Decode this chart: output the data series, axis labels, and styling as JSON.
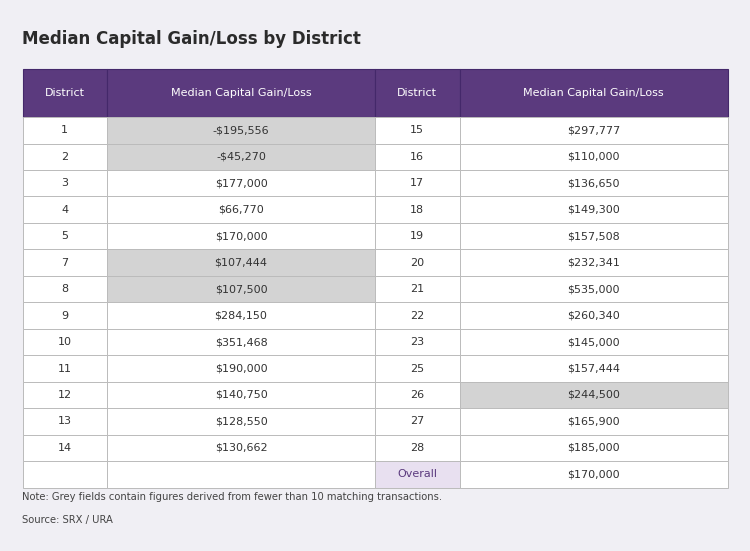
{
  "title": "Median Capital Gain/Loss by District",
  "header_bg": "#5b3a7e",
  "header_fg": "#ffffff",
  "row_bg_white": "#ffffff",
  "row_bg_grey": "#d3d3d3",
  "border_color": "#bbbbbb",
  "overall_district_bg": "#e8e0f0",
  "overall_district_fg": "#5b3a7e",
  "col_headers": [
    "District",
    "Median Capital Gain/Loss",
    "District",
    "Median Capital Gain/Loss"
  ],
  "left_data": [
    {
      "district": "1",
      "value": "-$195,556",
      "grey": true
    },
    {
      "district": "2",
      "value": "-$45,270",
      "grey": true
    },
    {
      "district": "3",
      "value": "$177,000",
      "grey": false
    },
    {
      "district": "4",
      "value": "$66,770",
      "grey": false
    },
    {
      "district": "5",
      "value": "$170,000",
      "grey": false
    },
    {
      "district": "7",
      "value": "$107,444",
      "grey": true
    },
    {
      "district": "8",
      "value": "$107,500",
      "grey": true
    },
    {
      "district": "9",
      "value": "$284,150",
      "grey": false
    },
    {
      "district": "10",
      "value": "$351,468",
      "grey": false
    },
    {
      "district": "11",
      "value": "$190,000",
      "grey": false
    },
    {
      "district": "12",
      "value": "$140,750",
      "grey": false
    },
    {
      "district": "13",
      "value": "$128,550",
      "grey": false
    },
    {
      "district": "14",
      "value": "$130,662",
      "grey": false
    }
  ],
  "right_data": [
    {
      "district": "15",
      "value": "$297,777",
      "grey": false
    },
    {
      "district": "16",
      "value": "$110,000",
      "grey": false
    },
    {
      "district": "17",
      "value": "$136,650",
      "grey": false
    },
    {
      "district": "18",
      "value": "$149,300",
      "grey": false
    },
    {
      "district": "19",
      "value": "$157,508",
      "grey": false
    },
    {
      "district": "20",
      "value": "$232,341",
      "grey": false
    },
    {
      "district": "21",
      "value": "$535,000",
      "grey": false
    },
    {
      "district": "22",
      "value": "$260,340",
      "grey": false
    },
    {
      "district": "23",
      "value": "$145,000",
      "grey": false
    },
    {
      "district": "25",
      "value": "$157,444",
      "grey": false
    },
    {
      "district": "26",
      "value": "$244,500",
      "grey": true
    },
    {
      "district": "27",
      "value": "$165,900",
      "grey": false
    },
    {
      "district": "28",
      "value": "$185,000",
      "grey": false
    }
  ],
  "overall_district": "Overall",
  "overall_value": "$170,000",
  "note": "Note: Grey fields contain figures derived from fewer than 10 matching transactions.",
  "source": "Source: SRX / URA",
  "bg_color": "#f0eff4"
}
